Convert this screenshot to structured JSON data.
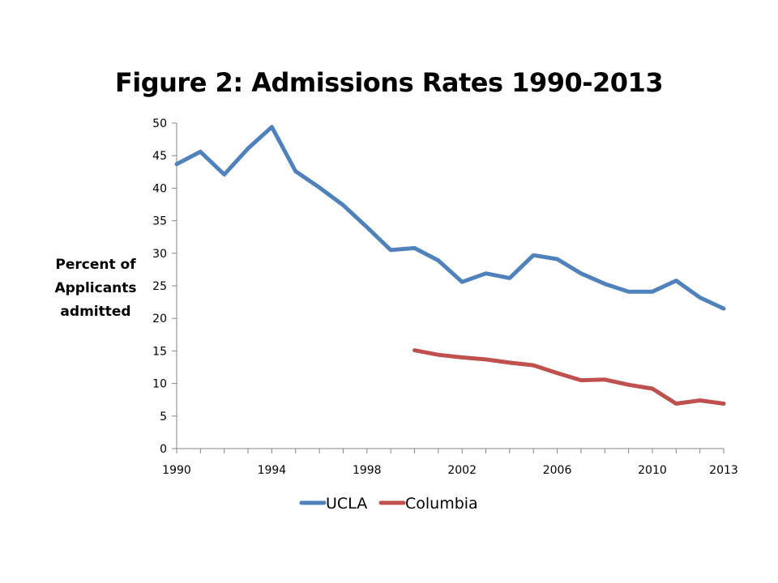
{
  "chart_data": {
    "type": "line",
    "title": "Figure 2: Admissions Rates 1990-2013",
    "ylabel_lines": [
      "Percent of",
      "Applicants",
      "admitted"
    ],
    "xlabel": "",
    "xlim": [
      1990,
      2013
    ],
    "ylim": [
      0,
      50
    ],
    "yticks": [
      0,
      5,
      10,
      15,
      20,
      25,
      30,
      35,
      40,
      45,
      50
    ],
    "xtick_labels": [
      1990,
      1994,
      1998,
      2002,
      2006,
      2010,
      2013
    ],
    "grid": false,
    "legend_position": "bottom",
    "series": [
      {
        "name": "UCLA",
        "color": "#4f81bd",
        "x": [
          1990,
          1991,
          1992,
          1993,
          1994,
          1995,
          1996,
          1997,
          1998,
          1999,
          2000,
          2001,
          2002,
          2003,
          2004,
          2005,
          2006,
          2007,
          2008,
          2009,
          2010,
          2011,
          2012,
          2013
        ],
        "y": [
          43.7,
          45.6,
          42.1,
          46.1,
          49.4,
          42.6,
          40.1,
          37.4,
          34.0,
          30.5,
          30.8,
          28.9,
          25.6,
          26.9,
          26.2,
          29.7,
          29.1,
          26.9,
          25.3,
          24.1,
          24.1,
          25.8,
          23.2,
          21.5
        ]
      },
      {
        "name": "Columbia",
        "color": "#c0504d",
        "x": [
          2000,
          2001,
          2002,
          2003,
          2004,
          2005,
          2006,
          2007,
          2008,
          2009,
          2010,
          2011,
          2012,
          2013
        ],
        "y": [
          15.1,
          14.4,
          14.0,
          13.7,
          13.2,
          12.8,
          11.6,
          10.5,
          10.6,
          9.8,
          9.2,
          6.9,
          7.4,
          6.9
        ]
      }
    ]
  }
}
